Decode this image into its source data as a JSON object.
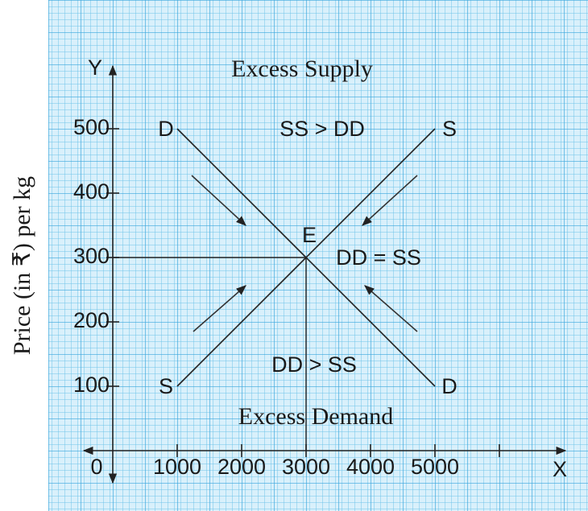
{
  "chart_data": {
    "type": "line",
    "x": [
      1000,
      3000,
      5000
    ],
    "series": [
      {
        "name": "D",
        "color": "#222222",
        "values": [
          500,
          300,
          100
        ]
      },
      {
        "name": "S",
        "color": "#222222",
        "values": [
          100,
          300,
          500
        ]
      }
    ],
    "xlim": [
      0,
      7000
    ],
    "ylim": [
      0,
      600
    ],
    "xticks": [
      1000,
      2000,
      3000,
      4000,
      5000
    ],
    "yticks": [
      100,
      200,
      300,
      400,
      500
    ],
    "x_axis_label": "X",
    "y_axis_letter": "Y",
    "origin_label": "0",
    "y_label": "Price (in ₹) per kg",
    "equilibrium": {
      "label": "E",
      "x": 3000,
      "y": 300
    },
    "annotations": [
      "Excess Supply",
      "SS > DD",
      "DD = SS",
      "DD > SS",
      "Excess Demand"
    ]
  }
}
